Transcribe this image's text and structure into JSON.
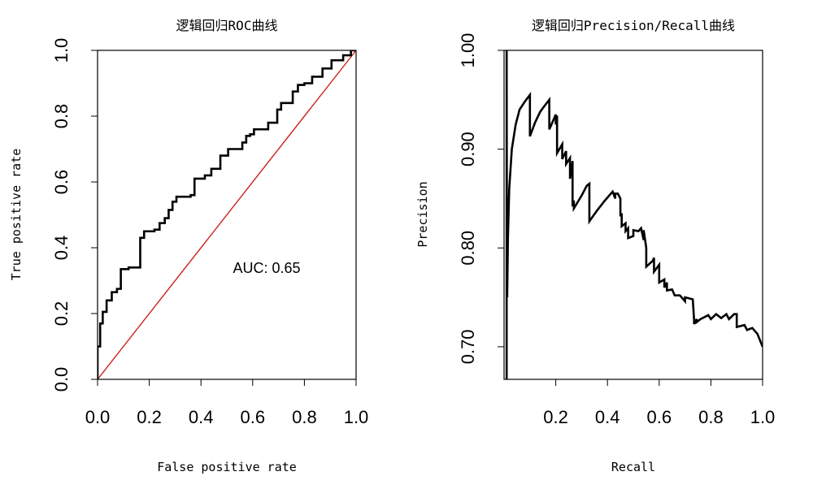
{
  "colors": {
    "curve": "#000000",
    "diagonal": "#cc2222",
    "frame": "#000000"
  },
  "chart_data": [
    {
      "type": "line",
      "title": "逻辑回归ROC曲线",
      "xlabel": "False positive rate",
      "ylabel": "True positive rate",
      "xlim": [
        0,
        1
      ],
      "ylim": [
        0,
        1
      ],
      "xticks": [
        "0.0",
        "0.2",
        "0.4",
        "0.6",
        "0.8",
        "1.0"
      ],
      "yticks": [
        "0.0",
        "0.2",
        "0.4",
        "0.6",
        "0.8",
        "1.0"
      ],
      "annotation": "AUC: 0.65",
      "series": [
        {
          "x": [
            0,
            0,
            0.01,
            0.01,
            0.02,
            0.02,
            0.035,
            0.035,
            0.055,
            0.055,
            0.075,
            0.075,
            0.09,
            0.09,
            0.12,
            0.12,
            0.165,
            0.165,
            0.18,
            0.18,
            0.22,
            0.22,
            0.24,
            0.24,
            0.26,
            0.26,
            0.275,
            0.275,
            0.29,
            0.29,
            0.305,
            0.305,
            0.36,
            0.36,
            0.375,
            0.375,
            0.415,
            0.415,
            0.44,
            0.44,
            0.475,
            0.475,
            0.505,
            0.505,
            0.56,
            0.56,
            0.575,
            0.575,
            0.59,
            0.59,
            0.605,
            0.605,
            0.66,
            0.66,
            0.695,
            0.695,
            0.71,
            0.71,
            0.755,
            0.755,
            0.775,
            0.775,
            0.8,
            0.8,
            0.83,
            0.83,
            0.87,
            0.87,
            0.905,
            0.905,
            0.95,
            0.95,
            0.98,
            0.98,
            1.0
          ],
          "y": [
            0,
            0.1,
            0.1,
            0.17,
            0.17,
            0.205,
            0.205,
            0.24,
            0.24,
            0.265,
            0.265,
            0.275,
            0.275,
            0.335,
            0.335,
            0.34,
            0.34,
            0.43,
            0.43,
            0.45,
            0.45,
            0.455,
            0.455,
            0.475,
            0.475,
            0.49,
            0.49,
            0.515,
            0.515,
            0.54,
            0.54,
            0.555,
            0.555,
            0.56,
            0.56,
            0.61,
            0.61,
            0.62,
            0.62,
            0.64,
            0.64,
            0.68,
            0.68,
            0.7,
            0.7,
            0.72,
            0.72,
            0.74,
            0.74,
            0.745,
            0.745,
            0.76,
            0.76,
            0.78,
            0.78,
            0.82,
            0.82,
            0.84,
            0.84,
            0.875,
            0.875,
            0.895,
            0.895,
            0.9,
            0.9,
            0.92,
            0.92,
            0.945,
            0.945,
            0.97,
            0.97,
            0.985,
            0.985,
            1.0,
            1.0
          ]
        }
      ],
      "diagonal": {
        "x": [
          0,
          1
        ],
        "y": [
          0,
          1
        ]
      }
    },
    {
      "type": "line",
      "title": "逻辑回归Precision/Recall曲线",
      "xlabel": "Recall",
      "ylabel": "Precision",
      "xlim": [
        0.0,
        1.0
      ],
      "ylim": [
        0.667,
        1.0
      ],
      "xticks": [
        "0.2",
        "0.4",
        "0.6",
        "0.8",
        "1.0"
      ],
      "yticks": [
        "0.70",
        "0.80",
        "0.90",
        "1.00"
      ],
      "series": [
        {
          "x": [
            0.01,
            0.01,
            0.011,
            0.012,
            0.015,
            0.02,
            0.03,
            0.045,
            0.06,
            0.08,
            0.1,
            0.1,
            0.12,
            0.14,
            0.16,
            0.175,
            0.175,
            0.2,
            0.2,
            0.205,
            0.205,
            0.225,
            0.225,
            0.24,
            0.24,
            0.255,
            0.255,
            0.265,
            0.265,
            0.27,
            0.27,
            0.3,
            0.32,
            0.33,
            0.33,
            0.36,
            0.39,
            0.42,
            0.43,
            0.43,
            0.44,
            0.45,
            0.45,
            0.455,
            0.455,
            0.47,
            0.47,
            0.48,
            0.48,
            0.5,
            0.5,
            0.52,
            0.53,
            0.54,
            0.54,
            0.55,
            0.55,
            0.575,
            0.58,
            0.58,
            0.6,
            0.6,
            0.62,
            0.62,
            0.63,
            0.63,
            0.65,
            0.66,
            0.68,
            0.7,
            0.7,
            0.73,
            0.735,
            0.735,
            0.745,
            0.745,
            0.76,
            0.76,
            0.79,
            0.8,
            0.82,
            0.84,
            0.86,
            0.87,
            0.89,
            0.9,
            0.9,
            0.93,
            0.94,
            0.96,
            0.98,
            1.0
          ],
          "y": [
            0.667,
            1.0,
            0.8,
            0.75,
            0.81,
            0.86,
            0.9,
            0.925,
            0.94,
            0.948,
            0.955,
            0.913,
            0.927,
            0.938,
            0.945,
            0.95,
            0.92,
            0.935,
            0.925,
            0.934,
            0.896,
            0.905,
            0.89,
            0.898,
            0.885,
            0.891,
            0.87,
            0.888,
            0.842,
            0.848,
            0.84,
            0.853,
            0.863,
            0.865,
            0.827,
            0.838,
            0.848,
            0.857,
            0.85,
            0.855,
            0.855,
            0.85,
            0.832,
            0.835,
            0.822,
            0.825,
            0.817,
            0.82,
            0.81,
            0.812,
            0.818,
            0.817,
            0.82,
            0.808,
            0.818,
            0.8,
            0.781,
            0.787,
            0.79,
            0.776,
            0.783,
            0.765,
            0.768,
            0.76,
            0.765,
            0.757,
            0.758,
            0.752,
            0.752,
            0.746,
            0.75,
            0.748,
            0.727,
            0.723,
            0.728,
            0.725,
            0.728,
            0.728,
            0.732,
            0.728,
            0.733,
            0.729,
            0.733,
            0.728,
            0.733,
            0.733,
            0.72,
            0.722,
            0.717,
            0.719,
            0.713,
            0.7
          ]
        }
      ]
    }
  ]
}
